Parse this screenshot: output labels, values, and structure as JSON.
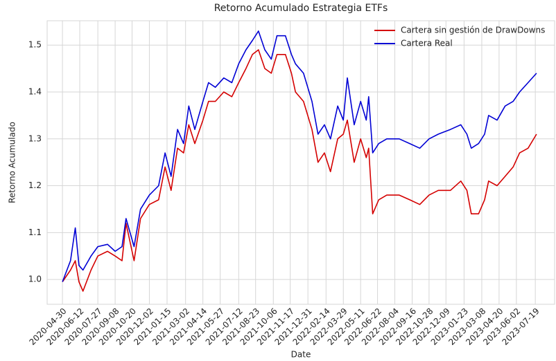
{
  "chart_data": {
    "type": "line",
    "title": "Retorno Acumulado Estrategia ETFs",
    "xlabel": "Date",
    "ylabel": "Retorno Acumulado",
    "x": [
      "2020-04-30",
      "2020-05-20",
      "2020-06-01",
      "2020-06-10",
      "2020-06-20",
      "2020-07-10",
      "2020-07-27",
      "2020-08-20",
      "2020-09-08",
      "2020-09-25",
      "2020-10-05",
      "2020-10-25",
      "2020-11-10",
      "2020-12-02",
      "2020-12-25",
      "2021-01-10",
      "2021-01-25",
      "2021-02-10",
      "2021-02-25",
      "2021-03-10",
      "2021-03-25",
      "2021-04-14",
      "2021-04-28",
      "2021-05-15",
      "2021-06-05",
      "2021-06-25",
      "2021-07-12",
      "2021-07-30",
      "2021-08-15",
      "2021-08-30",
      "2021-09-15",
      "2021-10-01",
      "2021-10-15",
      "2021-11-05",
      "2021-11-20",
      "2021-11-30",
      "2021-12-20",
      "2022-01-10",
      "2022-01-25",
      "2022-02-10",
      "2022-02-25",
      "2022-03-15",
      "2022-03-29",
      "2022-04-08",
      "2022-04-25",
      "2022-05-11",
      "2022-05-25",
      "2022-05-31",
      "2022-06-10",
      "2022-06-25",
      "2022-07-15",
      "2022-08-15",
      "2022-09-10",
      "2022-10-05",
      "2022-10-28",
      "2022-11-20",
      "2022-12-20",
      "2023-01-15",
      "2023-01-30",
      "2023-02-10",
      "2023-02-28",
      "2023-03-15",
      "2023-03-25",
      "2023-04-15",
      "2023-05-05",
      "2023-05-25",
      "2023-06-10",
      "2023-07-01",
      "2023-07-22"
    ],
    "series": [
      {
        "name": "Cartera sin gestión de DrawDowns",
        "color": "#d40000",
        "values": [
          0.995,
          1.02,
          1.04,
          0.995,
          0.975,
          1.02,
          1.05,
          1.06,
          1.05,
          1.04,
          1.12,
          1.04,
          1.13,
          1.16,
          1.17,
          1.24,
          1.19,
          1.28,
          1.27,
          1.33,
          1.29,
          1.34,
          1.38,
          1.38,
          1.4,
          1.39,
          1.42,
          1.45,
          1.48,
          1.49,
          1.45,
          1.44,
          1.48,
          1.48,
          1.44,
          1.4,
          1.38,
          1.32,
          1.25,
          1.27,
          1.23,
          1.3,
          1.31,
          1.34,
          1.25,
          1.3,
          1.26,
          1.28,
          1.14,
          1.17,
          1.18,
          1.18,
          1.17,
          1.16,
          1.18,
          1.19,
          1.19,
          1.21,
          1.19,
          1.14,
          1.14,
          1.17,
          1.21,
          1.2,
          1.22,
          1.24,
          1.27,
          1.28,
          1.31
        ]
      },
      {
        "name": "Cartera Real",
        "color": "#0000d4",
        "values": [
          0.995,
          1.04,
          1.11,
          1.03,
          1.02,
          1.05,
          1.07,
          1.075,
          1.06,
          1.07,
          1.13,
          1.07,
          1.15,
          1.18,
          1.2,
          1.27,
          1.22,
          1.32,
          1.29,
          1.37,
          1.32,
          1.38,
          1.42,
          1.41,
          1.43,
          1.42,
          1.46,
          1.49,
          1.51,
          1.53,
          1.49,
          1.47,
          1.52,
          1.52,
          1.48,
          1.46,
          1.44,
          1.38,
          1.31,
          1.33,
          1.3,
          1.37,
          1.34,
          1.43,
          1.33,
          1.38,
          1.34,
          1.39,
          1.27,
          1.29,
          1.3,
          1.3,
          1.29,
          1.28,
          1.3,
          1.31,
          1.32,
          1.33,
          1.31,
          1.28,
          1.29,
          1.31,
          1.35,
          1.34,
          1.37,
          1.38,
          1.4,
          1.42,
          1.44
        ]
      }
    ],
    "xlim": [
      "2020-03-23",
      "2023-09-05"
    ],
    "xticks": [
      "2020-04-30",
      "2020-06-12",
      "2020-07-27",
      "2020-09-08",
      "2020-10-20",
      "2020-12-02",
      "2021-01-15",
      "2021-03-02",
      "2021-04-14",
      "2021-05-27",
      "2021-07-12",
      "2021-08-23",
      "2021-10-06",
      "2021-11-17",
      "2021-12-31",
      "2022-02-14",
      "2022-03-29",
      "2022-05-11",
      "2022-06-22",
      "2022-08-04",
      "2022-09-16",
      "2022-10-28",
      "2022-12-09",
      "2023-01-23",
      "2023-03-08",
      "2023-04-20",
      "2023-06-02",
      "2023-07-19"
    ],
    "ylim": [
      0.947,
      1.552
    ],
    "yticks": [
      {
        "value": 1,
        "label": "1.0"
      },
      {
        "value": 1.1,
        "label": "1.1"
      },
      {
        "value": 1.2,
        "label": "1.2"
      },
      {
        "value": 1.3,
        "label": "1.3"
      },
      {
        "value": 1.4,
        "label": "1.4"
      },
      {
        "value": 1.5,
        "label": "1.5"
      }
    ],
    "grid": true,
    "legend": "upper right"
  }
}
